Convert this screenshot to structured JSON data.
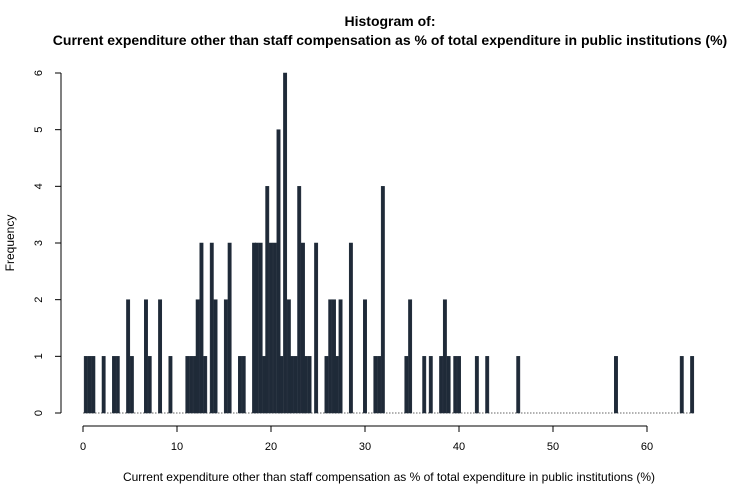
{
  "chart_data": {
    "type": "bar",
    "title_line1": "Histogram of:",
    "title_line2": "Current expenditure other than staff compensation as % of total expenditure in public institutions (%)",
    "xlabel": "Current expenditure other than staff compensation as % of total expenditure in public institutions (%)",
    "ylabel": "Frequency",
    "xlim": [
      0,
      65
    ],
    "ylim": [
      0,
      6
    ],
    "xticks": [
      0,
      10,
      20,
      30,
      40,
      50,
      60
    ],
    "yticks": [
      0,
      1,
      2,
      3,
      4,
      5,
      6
    ],
    "bin_width": 0.36,
    "bins": [
      {
        "x": 0.3,
        "y": 1
      },
      {
        "x": 0.7,
        "y": 1
      },
      {
        "x": 1.1,
        "y": 1
      },
      {
        "x": 2.2,
        "y": 1
      },
      {
        "x": 3.3,
        "y": 1
      },
      {
        "x": 3.7,
        "y": 1
      },
      {
        "x": 4.8,
        "y": 2
      },
      {
        "x": 5.2,
        "y": 1
      },
      {
        "x": 6.7,
        "y": 2
      },
      {
        "x": 7.1,
        "y": 1
      },
      {
        "x": 8.2,
        "y": 2
      },
      {
        "x": 9.3,
        "y": 1
      },
      {
        "x": 11.1,
        "y": 1
      },
      {
        "x": 11.5,
        "y": 1
      },
      {
        "x": 11.9,
        "y": 1
      },
      {
        "x": 12.2,
        "y": 2
      },
      {
        "x": 12.6,
        "y": 3
      },
      {
        "x": 13.0,
        "y": 1
      },
      {
        "x": 13.7,
        "y": 3
      },
      {
        "x": 14.1,
        "y": 2
      },
      {
        "x": 15.2,
        "y": 2
      },
      {
        "x": 15.6,
        "y": 3
      },
      {
        "x": 16.7,
        "y": 1
      },
      {
        "x": 17.1,
        "y": 1
      },
      {
        "x": 18.2,
        "y": 3
      },
      {
        "x": 18.5,
        "y": 3
      },
      {
        "x": 18.9,
        "y": 3
      },
      {
        "x": 19.3,
        "y": 1
      },
      {
        "x": 19.6,
        "y": 4
      },
      {
        "x": 20.0,
        "y": 3
      },
      {
        "x": 20.4,
        "y": 3
      },
      {
        "x": 20.8,
        "y": 5
      },
      {
        "x": 21.1,
        "y": 1
      },
      {
        "x": 21.5,
        "y": 6
      },
      {
        "x": 21.9,
        "y": 2
      },
      {
        "x": 22.2,
        "y": 1
      },
      {
        "x": 22.6,
        "y": 1
      },
      {
        "x": 23.0,
        "y": 4
      },
      {
        "x": 23.4,
        "y": 3
      },
      {
        "x": 23.7,
        "y": 1
      },
      {
        "x": 24.1,
        "y": 1
      },
      {
        "x": 24.8,
        "y": 3
      },
      {
        "x": 25.9,
        "y": 1
      },
      {
        "x": 26.3,
        "y": 2
      },
      {
        "x": 26.7,
        "y": 2
      },
      {
        "x": 27.0,
        "y": 1
      },
      {
        "x": 27.4,
        "y": 2
      },
      {
        "x": 28.5,
        "y": 3
      },
      {
        "x": 30.0,
        "y": 2
      },
      {
        "x": 31.1,
        "y": 1
      },
      {
        "x": 31.5,
        "y": 1
      },
      {
        "x": 31.9,
        "y": 4
      },
      {
        "x": 34.4,
        "y": 1
      },
      {
        "x": 34.8,
        "y": 2
      },
      {
        "x": 36.3,
        "y": 1
      },
      {
        "x": 37.0,
        "y": 1
      },
      {
        "x": 38.1,
        "y": 1
      },
      {
        "x": 38.5,
        "y": 2
      },
      {
        "x": 38.9,
        "y": 1
      },
      {
        "x": 39.6,
        "y": 1
      },
      {
        "x": 40.0,
        "y": 1
      },
      {
        "x": 41.9,
        "y": 1
      },
      {
        "x": 43.0,
        "y": 1
      },
      {
        "x": 46.3,
        "y": 1
      },
      {
        "x": 56.7,
        "y": 1
      },
      {
        "x": 63.7,
        "y": 1
      },
      {
        "x": 64.8,
        "y": 1
      }
    ],
    "bar_color": "#1f2a38",
    "grid": false
  }
}
